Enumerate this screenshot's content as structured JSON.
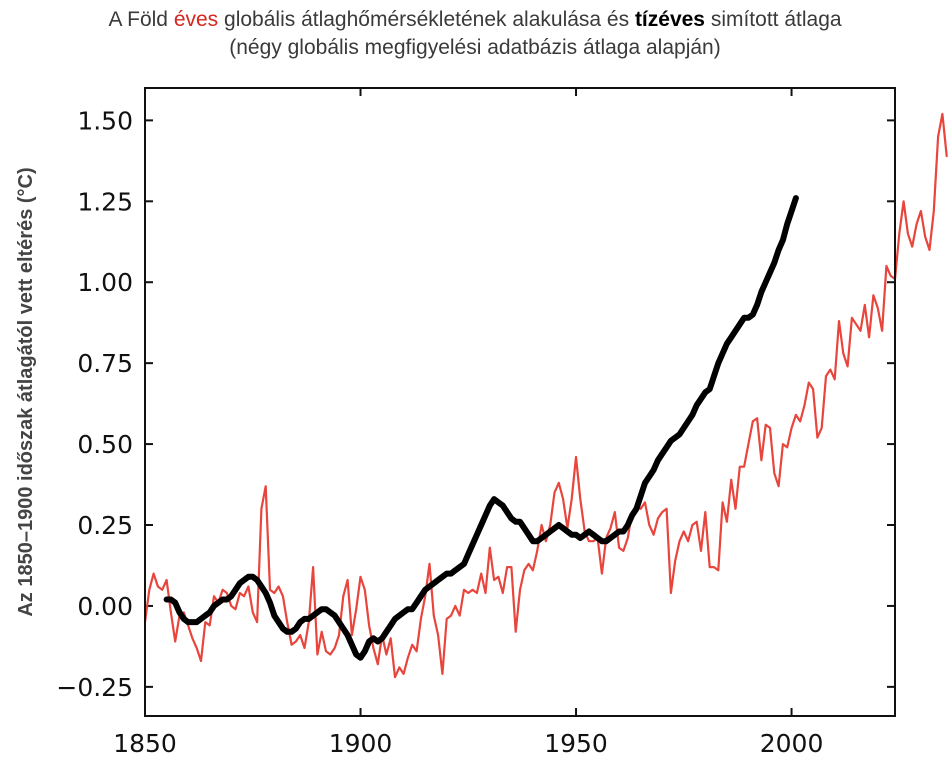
{
  "title": {
    "line1": [
      {
        "text": "A Föld ",
        "style": "normal"
      },
      {
        "text": "éves",
        "style": "red"
      },
      {
        "text": " globális átlaghőmérsékletének alakulása és ",
        "style": "normal"
      },
      {
        "text": "tízéves",
        "style": "bold"
      },
      {
        "text": " simított átlaga",
        "style": "normal"
      }
    ],
    "line2": "(négy globális megfigyelési adatbázis átlaga alapján)"
  },
  "colors": {
    "annual": "#e8453c",
    "smoothed": "#000000",
    "title_red": "#d7261e"
  },
  "chart_data": {
    "type": "line",
    "ylabel": "Az 1850–1900 időszak átlagától vett eltérés (°C)",
    "xlabel": "",
    "xlim": [
      1850,
      2024
    ],
    "ylim": [
      -0.34,
      1.6
    ],
    "xticks": [
      1850,
      1900,
      1950,
      2000
    ],
    "xtick_labels": [
      "1850",
      "1900",
      "1950",
      "2000"
    ],
    "yticks": [
      -0.25,
      0.0,
      0.25,
      0.5,
      0.75,
      1.0,
      1.25,
      1.5
    ],
    "ytick_labels": [
      "−0.25",
      "0.00",
      "0.25",
      "0.50",
      "0.75",
      "1.00",
      "1.25",
      "1.50"
    ],
    "grid": false,
    "series": [
      {
        "key": "annual",
        "x_start": 1850,
        "values": [
          -0.05,
          0.05,
          0.1,
          0.06,
          0.05,
          0.08,
          -0.02,
          -0.11,
          -0.03,
          -0.02,
          -0.06,
          -0.1,
          -0.13,
          -0.17,
          -0.05,
          -0.06,
          0.03,
          0.01,
          0.05,
          0.04,
          0.0,
          -0.01,
          0.04,
          0.03,
          0.06,
          -0.02,
          -0.05,
          0.3,
          0.37,
          0.05,
          0.04,
          0.06,
          0.03,
          -0.05,
          -0.12,
          -0.11,
          -0.09,
          -0.13,
          -0.05,
          0.12,
          -0.15,
          -0.08,
          -0.14,
          -0.15,
          -0.13,
          -0.09,
          0.03,
          0.08,
          -0.09,
          -0.01,
          0.09,
          0.05,
          -0.06,
          -0.13,
          -0.18,
          -0.09,
          -0.15,
          -0.1,
          -0.22,
          -0.19,
          -0.21,
          -0.16,
          -0.12,
          -0.14,
          -0.04,
          0.03,
          0.13,
          -0.03,
          -0.09,
          -0.21,
          -0.04,
          -0.03,
          0.0,
          -0.03,
          0.05,
          0.04,
          0.05,
          0.04,
          0.1,
          0.04,
          0.18,
          0.08,
          0.09,
          0.04,
          0.12,
          0.12,
          -0.08,
          0.05,
          0.11,
          0.13,
          0.11,
          0.17,
          0.25,
          0.2,
          0.25,
          0.35,
          0.38,
          0.33,
          0.24,
          0.33,
          0.46,
          0.33,
          0.23,
          0.2,
          0.2,
          0.21,
          0.1,
          0.21,
          0.24,
          0.29,
          0.18,
          0.17,
          0.21,
          0.29,
          0.31,
          0.3,
          0.32,
          0.25,
          0.22,
          0.27,
          0.29,
          0.3,
          0.04,
          0.14,
          0.2,
          0.23,
          0.2,
          0.25,
          0.26,
          0.17,
          0.29,
          0.12,
          0.12,
          0.11,
          0.32,
          0.26,
          0.39,
          0.3,
          0.43,
          0.43,
          0.5,
          0.57,
          0.58,
          0.45,
          0.56,
          0.55,
          0.41,
          0.37,
          0.5,
          0.49,
          0.55,
          0.59,
          0.57,
          0.62,
          0.69,
          0.67,
          0.52,
          0.55,
          0.71,
          0.73,
          0.7,
          0.88,
          0.78,
          0.74,
          0.89,
          0.87,
          0.85,
          0.93,
          0.83,
          0.96,
          0.92,
          0.85,
          1.05,
          1.02,
          1.01,
          1.15,
          1.25,
          1.15,
          1.11,
          1.18,
          1.22,
          1.14,
          1.1,
          1.22,
          1.45,
          1.52,
          1.39
        ]
      },
      {
        "key": "smoothed",
        "x_start": 1855,
        "values": [
          0.02,
          0.02,
          0.01,
          -0.02,
          -0.04,
          -0.05,
          -0.05,
          -0.05,
          -0.04,
          -0.03,
          -0.02,
          0.0,
          0.01,
          0.02,
          0.02,
          0.03,
          0.05,
          0.07,
          0.08,
          0.09,
          0.09,
          0.08,
          0.06,
          0.04,
          0.01,
          -0.03,
          -0.05,
          -0.07,
          -0.08,
          -0.08,
          -0.07,
          -0.05,
          -0.04,
          -0.04,
          -0.03,
          -0.02,
          -0.01,
          -0.01,
          -0.02,
          -0.03,
          -0.05,
          -0.07,
          -0.09,
          -0.12,
          -0.15,
          -0.16,
          -0.14,
          -0.11,
          -0.1,
          -0.11,
          -0.1,
          -0.08,
          -0.06,
          -0.04,
          -0.03,
          -0.02,
          -0.01,
          -0.01,
          0.01,
          0.03,
          0.05,
          0.06,
          0.07,
          0.08,
          0.09,
          0.1,
          0.1,
          0.11,
          0.12,
          0.13,
          0.16,
          0.19,
          0.22,
          0.25,
          0.28,
          0.31,
          0.33,
          0.32,
          0.31,
          0.29,
          0.27,
          0.26,
          0.26,
          0.24,
          0.22,
          0.2,
          0.2,
          0.21,
          0.22,
          0.23,
          0.24,
          0.25,
          0.24,
          0.23,
          0.22,
          0.22,
          0.21,
          0.22,
          0.23,
          0.22,
          0.21,
          0.2,
          0.2,
          0.21,
          0.22,
          0.23,
          0.23,
          0.25,
          0.28,
          0.3,
          0.34,
          0.38,
          0.4,
          0.42,
          0.45,
          0.47,
          0.49,
          0.51,
          0.52,
          0.53,
          0.55,
          0.57,
          0.59,
          0.62,
          0.64,
          0.66,
          0.67,
          0.71,
          0.75,
          0.78,
          0.81,
          0.83,
          0.85,
          0.87,
          0.89,
          0.89,
          0.9,
          0.93,
          0.97,
          1.0,
          1.03,
          1.06,
          1.1,
          1.13,
          1.18,
          1.22,
          1.26
        ]
      }
    ]
  }
}
